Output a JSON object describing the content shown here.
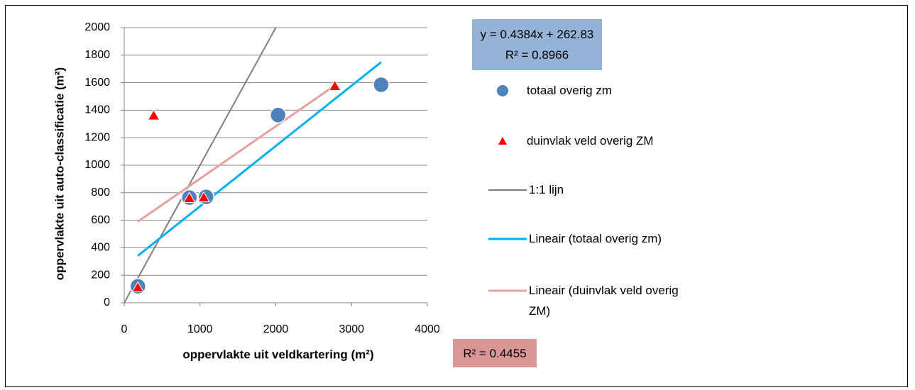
{
  "chart_data": {
    "type": "scatter",
    "xlabel": "oppervlakte uit veldkartering (m²)",
    "ylabel": "oppervlakte uit auto-classificatie (m²)",
    "xlim": [
      0,
      4000
    ],
    "xticks": [
      0,
      1000,
      2000,
      3000,
      4000
    ],
    "ylim": [
      0,
      2000
    ],
    "yticks": [
      0,
      200,
      400,
      600,
      800,
      1000,
      1200,
      1400,
      1600,
      1800,
      2000
    ],
    "grid": true,
    "series": [
      {
        "name": "totaal overig zm",
        "type": "scatter",
        "marker": "circle",
        "color": "#4f81bd",
        "x": [
          180,
          860,
          1080,
          2030,
          3390
        ],
        "values": [
          120,
          765,
          770,
          1365,
          1585
        ]
      },
      {
        "name": "duinvlak veld overig ZM",
        "type": "scatter",
        "marker": "triangle",
        "color": "#ff0000",
        "x": [
          180,
          390,
          860,
          1050,
          2780
        ],
        "values": [
          110,
          1360,
          760,
          765,
          1575
        ]
      },
      {
        "name": "1:1 lijn",
        "type": "line",
        "color": "#7f7f7f",
        "x": [
          0,
          2000
        ],
        "values": [
          0,
          2000
        ]
      },
      {
        "name": "Lineair (totaal overig zm)",
        "type": "line",
        "color": "#00b0f0",
        "x": [
          180,
          3390
        ],
        "values": [
          342,
          1749
        ]
      },
      {
        "name": "Lineair (duinvlak veld overig ZM)",
        "type": "line",
        "color": "#e6a0a0",
        "x": [
          180,
          2780
        ],
        "values": [
          590,
          1580
        ]
      }
    ],
    "annotations": [
      {
        "lines": [
          "y = 0.4384x + 262.83",
          "R² = 0.8966"
        ],
        "color": "#95b3d7"
      },
      {
        "lines": [
          "R² = 0.4455"
        ],
        "color": "#da9694"
      }
    ]
  }
}
